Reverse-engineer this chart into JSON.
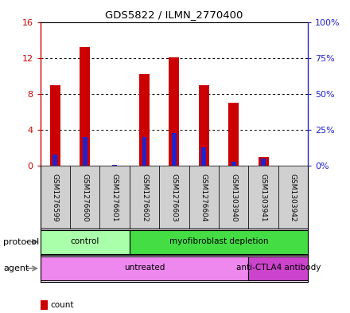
{
  "title": "GDS5822 / ILMN_2770400",
  "samples": [
    "GSM1276599",
    "GSM1276600",
    "GSM1276601",
    "GSM1276602",
    "GSM1276603",
    "GSM1276604",
    "GSM1303940",
    "GSM1303941",
    "GSM1303942"
  ],
  "counts": [
    9.0,
    13.2,
    0.05,
    10.2,
    12.1,
    9.0,
    7.0,
    1.0,
    0.05
  ],
  "percentiles": [
    8.0,
    20.0,
    0.5,
    20.0,
    23.0,
    13.0,
    3.0,
    5.0,
    0.2
  ],
  "ylim_left": [
    0,
    16
  ],
  "ylim_right": [
    0,
    100
  ],
  "yticks_left": [
    0,
    4,
    8,
    12,
    16
  ],
  "ytick_labels_left": [
    "0",
    "4",
    "8",
    "12",
    "16"
  ],
  "yticks_right": [
    0,
    25,
    50,
    75,
    100
  ],
  "ytick_labels_right": [
    "0%",
    "25%",
    "50%",
    "75%",
    "100%"
  ],
  "bar_color_count": "#cc0000",
  "bar_color_percentile": "#2222cc",
  "bar_width": 0.35,
  "protocol_groups": [
    {
      "label": "control",
      "start": 0,
      "end": 3,
      "color": "#aaffaa"
    },
    {
      "label": "myofibroblast depletion",
      "start": 3,
      "end": 9,
      "color": "#44dd44"
    }
  ],
  "agent_groups": [
    {
      "label": "untreated",
      "start": 0,
      "end": 7,
      "color": "#ee88ee"
    },
    {
      "label": "anti-CTLA4 antibody",
      "start": 7,
      "end": 9,
      "color": "#cc44cc"
    }
  ],
  "legend_count_color": "#cc0000",
  "legend_pct_color": "#2222cc",
  "plot_bg_color": "#ffffff",
  "sample_box_color": "#d0d0d0"
}
